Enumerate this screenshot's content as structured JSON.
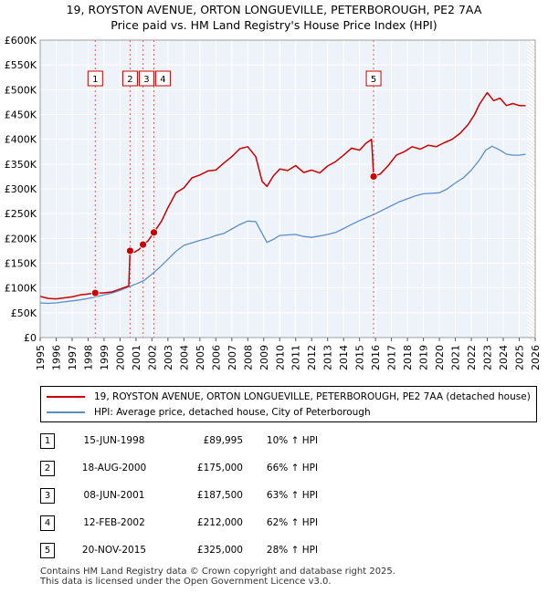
{
  "chart_data": {
    "type": "line",
    "title": "19, ROYSTON AVENUE, ORTON LONGUEVILLE, PETERBOROUGH, PE2 7AA",
    "subtitle": "Price paid vs. HM Land Registry's House Price Index (HPI)",
    "xlim": [
      1995,
      2026
    ],
    "ylim": [
      0,
      600000
    ],
    "x_ticks": [
      "1995",
      "1996",
      "1997",
      "1998",
      "1999",
      "2000",
      "2001",
      "2002",
      "2003",
      "2004",
      "2005",
      "2006",
      "2007",
      "2008",
      "2009",
      "2010",
      "2011",
      "2012",
      "2013",
      "2014",
      "2015",
      "2016",
      "2017",
      "2018",
      "2019",
      "2020",
      "2021",
      "2022",
      "2023",
      "2024",
      "2025",
      "2026"
    ],
    "y_ticks": [
      "£0",
      "£50K",
      "£100K",
      "£150K",
      "£200K",
      "£250K",
      "£300K",
      "£350K",
      "£400K",
      "£450K",
      "£500K",
      "£550K",
      "£600K"
    ],
    "grid": true,
    "series": [
      {
        "name": "19, ROYSTON AVENUE, ORTON LONGUEVILLE, PETERBOROUGH, PE2 7AA (detached house)",
        "color": "#cc0000",
        "x": [
          1995.0,
          1995.5,
          1996.0,
          1996.5,
          1997.0,
          1997.5,
          1998.0,
          1998.45,
          1998.9,
          1999.5,
          2000.0,
          2000.55,
          2000.63,
          2000.9,
          2001.2,
          2001.44,
          2001.75,
          2002.12,
          2002.6,
          2003.0,
          2003.5,
          2004.0,
          2004.5,
          2005.0,
          2005.5,
          2006.0,
          2006.5,
          2007.0,
          2007.5,
          2008.0,
          2008.5,
          2008.9,
          2009.2,
          2009.6,
          2010.0,
          2010.5,
          2011.0,
          2011.5,
          2012.0,
          2012.5,
          2013.0,
          2013.5,
          2014.0,
          2014.5,
          2015.0,
          2015.4,
          2015.75,
          2015.88,
          2016.3,
          2016.8,
          2017.3,
          2017.8,
          2018.3,
          2018.8,
          2019.3,
          2019.8,
          2020.3,
          2020.8,
          2021.3,
          2021.8,
          2022.2,
          2022.5,
          2022.8,
          2023.0,
          2023.4,
          2023.8,
          2024.2,
          2024.6,
          2025.0,
          2025.4
        ],
        "values": [
          83000,
          79000,
          78000,
          80000,
          82000,
          86000,
          88000,
          89995,
          90000,
          92000,
          98000,
          104000,
          175000,
          172000,
          178000,
          187500,
          195000,
          212000,
          235000,
          262000,
          292000,
          302000,
          322000,
          328000,
          336000,
          338000,
          352000,
          365000,
          381000,
          385000,
          365000,
          315000,
          305000,
          326000,
          340000,
          337000,
          347000,
          333000,
          338000,
          332000,
          346000,
          355000,
          368000,
          382000,
          378000,
          392000,
          400000,
          325000,
          330000,
          347000,
          368000,
          375000,
          385000,
          380000,
          388000,
          385000,
          393000,
          400000,
          412000,
          430000,
          450000,
          470000,
          485000,
          494000,
          478000,
          483000,
          468000,
          472000,
          468000,
          468000
        ]
      },
      {
        "name": "HPI: Average price, detached house, City of Peterborough",
        "color": "#5b8ec9",
        "x": [
          1995.0,
          1995.5,
          1996.0,
          1996.5,
          1997.0,
          1997.5,
          1998.0,
          1998.5,
          1999.0,
          1999.5,
          2000.0,
          2000.5,
          2001.0,
          2001.5,
          2002.0,
          2002.5,
          2003.0,
          2003.5,
          2004.0,
          2004.5,
          2005.0,
          2005.5,
          2006.0,
          2006.5,
          2007.0,
          2007.5,
          2008.0,
          2008.5,
          2008.9,
          2009.2,
          2009.6,
          2010.0,
          2010.5,
          2011.0,
          2011.5,
          2012.0,
          2012.5,
          2013.0,
          2013.5,
          2014.0,
          2014.5,
          2015.0,
          2015.5,
          2016.0,
          2016.5,
          2017.0,
          2017.5,
          2018.0,
          2018.5,
          2019.0,
          2019.5,
          2020.0,
          2020.5,
          2021.0,
          2021.5,
          2022.0,
          2022.5,
          2022.9,
          2023.3,
          2023.8,
          2024.2,
          2024.6,
          2025.0,
          2025.4
        ],
        "values": [
          70000,
          69000,
          70000,
          72000,
          74000,
          76000,
          79000,
          82000,
          86000,
          90000,
          95000,
          102000,
          108000,
          115000,
          128000,
          142000,
          158000,
          174000,
          186000,
          191000,
          196000,
          200000,
          206000,
          210000,
          219000,
          228000,
          235000,
          234000,
          210000,
          192000,
          198000,
          206000,
          207000,
          208000,
          204000,
          202000,
          205000,
          208000,
          212000,
          220000,
          228000,
          236000,
          243000,
          250000,
          258000,
          266000,
          274000,
          280000,
          286000,
          290000,
          291000,
          292000,
          300000,
          312000,
          322000,
          338000,
          358000,
          378000,
          386000,
          378000,
          370000,
          368000,
          368000,
          370000
        ]
      }
    ],
    "sale_markers": [
      {
        "label": "1",
        "x": 1998.45,
        "y": 89995
      },
      {
        "label": "2",
        "x": 2000.63,
        "y": 175000
      },
      {
        "label": "3",
        "x": 2001.44,
        "y": 187500
      },
      {
        "label": "4",
        "x": 2002.12,
        "y": 212000
      },
      {
        "label": "5",
        "x": 2015.88,
        "y": 325000
      }
    ],
    "future_shade_from": 2025.5
  },
  "legend": {
    "property_label": "19, ROYSTON AVENUE, ORTON LONGUEVILLE, PETERBOROUGH, PE2 7AA (detached house)",
    "hpi_label": "HPI: Average price, detached house, City of Peterborough"
  },
  "sales": [
    {
      "num": "1",
      "date": "15-JUN-1998",
      "price": "£89,995",
      "hpi": "10% ↑ HPI"
    },
    {
      "num": "2",
      "date": "18-AUG-2000",
      "price": "£175,000",
      "hpi": "66% ↑ HPI"
    },
    {
      "num": "3",
      "date": "08-JUN-2001",
      "price": "£187,500",
      "hpi": "63% ↑ HPI"
    },
    {
      "num": "4",
      "date": "12-FEB-2002",
      "price": "£212,000",
      "hpi": "62% ↑ HPI"
    },
    {
      "num": "5",
      "date": "20-NOV-2015",
      "price": "£325,000",
      "hpi": "28% ↑ HPI"
    }
  ],
  "footer": {
    "line1": "Contains HM Land Registry data © Crown copyright and database right 2025.",
    "line2": "This data is licensed under the Open Government Licence v3.0."
  }
}
